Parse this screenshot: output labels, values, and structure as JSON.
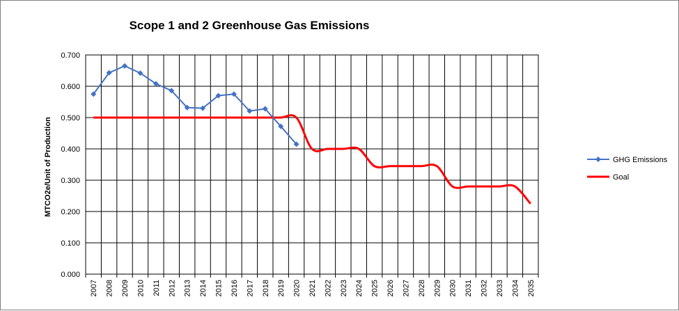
{
  "chart_data": {
    "type": "line",
    "title": "Scope 1 and 2 Greenhouse Gas Emissions",
    "xlabel": "",
    "ylabel": "MTCO2e/Unit of Production",
    "ylim": [
      0,
      0.7
    ],
    "yticks": [
      "0.000",
      "0.100",
      "0.200",
      "0.300",
      "0.400",
      "0.500",
      "0.600",
      "0.700"
    ],
    "ytick_values": [
      0,
      0.1,
      0.2,
      0.3,
      0.4,
      0.5,
      0.6,
      0.7
    ],
    "categories": [
      "2007",
      "2008",
      "2009",
      "2010",
      "2011",
      "2012",
      "2013",
      "2014",
      "2015",
      "2016",
      "2017",
      "2018",
      "2019",
      "2020",
      "2021",
      "2022",
      "2023",
      "2024",
      "2025",
      "2026",
      "2027",
      "2028",
      "2029",
      "2030",
      "2031",
      "2032",
      "2033",
      "2034",
      "2035"
    ],
    "grid": true,
    "legend_position": "right",
    "series": [
      {
        "name": "GHG Emissions",
        "color": "#4472C4",
        "marker": "diamond",
        "smooth": false,
        "values": [
          0.575,
          0.643,
          0.665,
          0.642,
          0.608,
          0.586,
          0.532,
          0.53,
          0.57,
          0.575,
          0.521,
          0.528,
          0.472,
          0.415,
          null,
          null,
          null,
          null,
          null,
          null,
          null,
          null,
          null,
          null,
          null,
          null,
          null,
          null,
          null
        ]
      },
      {
        "name": "Goal",
        "color": "#FF0000",
        "marker": "none",
        "smooth": true,
        "values": [
          0.5,
          0.5,
          0.5,
          0.5,
          0.5,
          0.5,
          0.5,
          0.5,
          0.5,
          0.5,
          0.5,
          0.5,
          0.5,
          0.5,
          0.4,
          0.4,
          0.4,
          0.4,
          0.345,
          0.345,
          0.345,
          0.345,
          0.345,
          0.28,
          0.28,
          0.28,
          0.28,
          0.28,
          0.225
        ]
      }
    ]
  }
}
